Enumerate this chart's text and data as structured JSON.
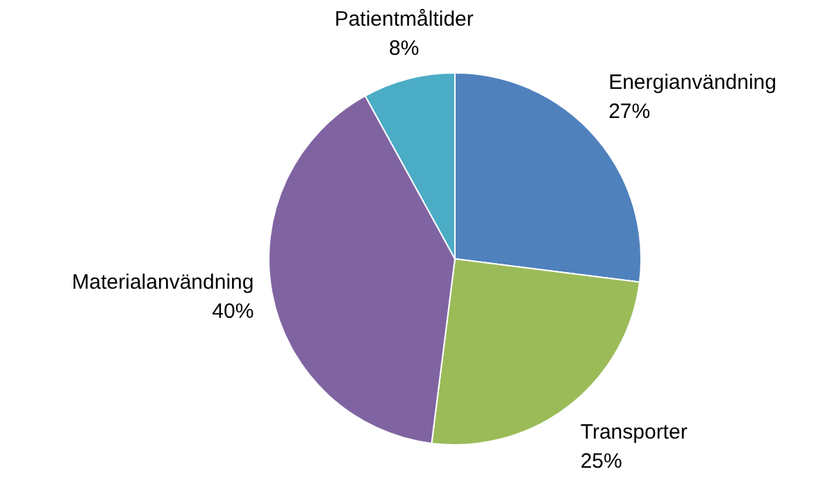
{
  "chart_data": {
    "type": "pie",
    "categories": [
      "Energianvändning",
      "Transporter",
      "Materialanvändning",
      "Patientmåltider"
    ],
    "values": [
      27,
      25,
      40,
      8
    ],
    "value_labels": [
      "27%",
      "25%",
      "40%",
      "8%"
    ],
    "colors": [
      "#4f81bd",
      "#9bbb59",
      "#8064a2",
      "#4bacc6"
    ],
    "legend": false
  }
}
